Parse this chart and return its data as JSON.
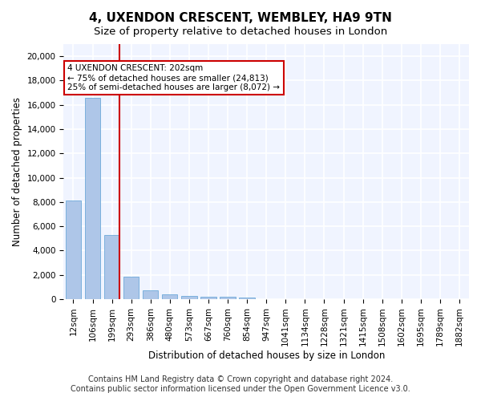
{
  "title": "4, UXENDON CRESCENT, WEMBLEY, HA9 9TN",
  "subtitle": "Size of property relative to detached houses in London",
  "xlabel": "Distribution of detached houses by size in London",
  "ylabel": "Number of detached properties",
  "bar_color": "#aec6e8",
  "bar_edge_color": "#5a9fd4",
  "marker_line_color": "#cc0000",
  "annotation_text": "4 UXENDON CRESCENT: 202sqm\n← 75% of detached houses are smaller (24,813)\n25% of semi-detached houses are larger (8,072) →",
  "annotation_box_color": "#ffffff",
  "annotation_box_edge": "#cc0000",
  "footer_line1": "Contains HM Land Registry data © Crown copyright and database right 2024.",
  "footer_line2": "Contains public sector information licensed under the Open Government Licence v3.0.",
  "categories": [
    "12sqm",
    "106sqm",
    "199sqm",
    "293sqm",
    "386sqm",
    "480sqm",
    "573sqm",
    "667sqm",
    "760sqm",
    "854sqm",
    "947sqm",
    "1041sqm",
    "1134sqm",
    "1228sqm",
    "1321sqm",
    "1415sqm",
    "1508sqm",
    "1602sqm",
    "1695sqm",
    "1789sqm",
    "1882sqm"
  ],
  "values": [
    8100,
    16600,
    5300,
    1850,
    700,
    370,
    270,
    200,
    200,
    150,
    0,
    0,
    0,
    0,
    0,
    0,
    0,
    0,
    0,
    0,
    0
  ],
  "marker_bin_index": 2,
  "ylim": [
    0,
    21000
  ],
  "yticks": [
    0,
    2000,
    4000,
    6000,
    8000,
    10000,
    12000,
    14000,
    16000,
    18000,
    20000
  ],
  "background_color": "#f0f4ff",
  "grid_color": "#ffffff",
  "title_fontsize": 11,
  "subtitle_fontsize": 9.5,
  "axis_label_fontsize": 8.5,
  "tick_fontsize": 7.5,
  "footer_fontsize": 7
}
